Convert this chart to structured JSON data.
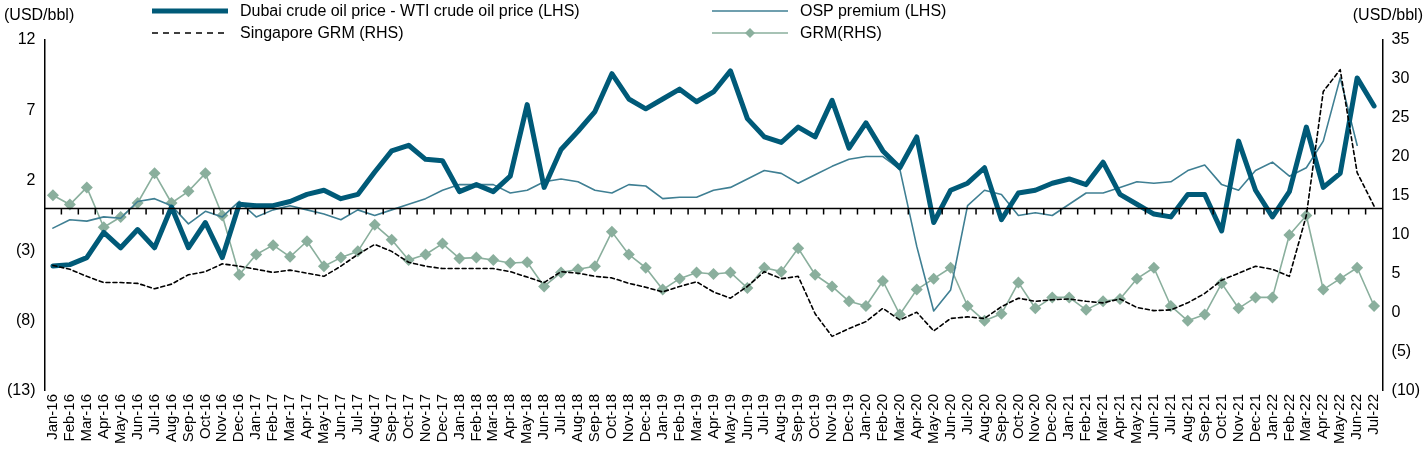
{
  "chart_data": {
    "type": "line",
    "ylabel": "(USD/bbl)",
    "y2label": "(USD/bbl)",
    "categories": [
      "Jan-16",
      "Feb-16",
      "Mar-16",
      "Apr-16",
      "May-16",
      "Jun-16",
      "Jul-16",
      "Aug-16",
      "Sep-16",
      "Oct-16",
      "Nov-16",
      "Dec-16",
      "Jan-17",
      "Feb-17",
      "Mar-17",
      "Apr-17",
      "May-17",
      "Jun-17",
      "Jul-17",
      "Aug-17",
      "Sep-17",
      "Oct-17",
      "Nov-17",
      "Dec-17",
      "Jan-18",
      "Feb-18",
      "Mar-18",
      "Apr-18",
      "May-18",
      "Jun-18",
      "Jul-18",
      "Aug-18",
      "Sep-18",
      "Oct-18",
      "Nov-18",
      "Dec-18",
      "Jan-19",
      "Feb-19",
      "Mar-19",
      "Apr-19",
      "May-19",
      "Jun-19",
      "Jul-19",
      "Aug-19",
      "Sep-19",
      "Oct-19",
      "Nov-19",
      "Dec-19",
      "Jan-20",
      "Feb-20",
      "Mar-20",
      "Apr-20",
      "May-20",
      "Jun-20",
      "Jul-20",
      "Aug-20",
      "Sep-20",
      "Oct-20",
      "Nov-20",
      "Dec-20",
      "Jan-21",
      "Feb-21",
      "Mar-21",
      "Apr-21",
      "May-21",
      "Jun-21",
      "Jul-21",
      "Aug-21",
      "Sep-21",
      "Oct-21",
      "Nov-21",
      "Dec-21",
      "Jan-22",
      "Feb-22",
      "Mar-22",
      "Apr-22",
      "May-22",
      "Jun-22",
      "Jul-22"
    ],
    "series": [
      {
        "name": "Dubai crude oil price - WTI crude oil price (LHS)",
        "color": "#005a78",
        "axis": "y",
        "line_style": "solid",
        "marker": "none",
        "values": [
          -4.1,
          -4.0,
          -3.5,
          -1.7,
          -2.8,
          -1.5,
          -2.8,
          0.1,
          -2.8,
          -1.0,
          -3.5,
          0.3,
          0.2,
          0.2,
          0.5,
          1.0,
          1.3,
          0.7,
          1.0,
          2.6,
          4.1,
          4.5,
          3.5,
          3.4,
          1.2,
          1.7,
          1.2,
          2.3,
          7.4,
          1.5,
          4.2,
          5.5,
          6.9,
          9.6,
          7.8,
          7.1,
          7.8,
          8.5,
          7.6,
          8.3,
          9.8,
          6.4,
          5.1,
          4.7,
          5.8,
          5.1,
          7.7,
          4.3,
          6.1,
          4.1,
          2.9,
          5.1,
          -1.0,
          1.3,
          1.8,
          2.9,
          -0.8,
          1.1,
          1.3,
          1.8,
          2.1,
          1.7,
          3.3,
          1.0,
          0.3,
          -0.4,
          -0.6,
          1.0,
          1.0,
          -1.6,
          4.8,
          1.3,
          -0.6,
          1.2,
          5.8,
          1.5,
          2.5,
          9.3,
          7.3
        ]
      },
      {
        "name": "OSP premium (LHS)",
        "color": "#3f7f93",
        "axis": "y",
        "line_style": "solid",
        "marker": "none",
        "values": [
          -1.4,
          -0.8,
          -0.9,
          -0.6,
          -0.7,
          0.5,
          0.7,
          0.2,
          -1.1,
          -0.2,
          -0.6,
          0.5,
          -0.6,
          -0.1,
          0.2,
          -0.1,
          -0.4,
          -0.8,
          -0.1,
          -0.5,
          -0.1,
          0.3,
          0.7,
          1.3,
          1.7,
          1.7,
          1.7,
          1.1,
          1.3,
          1.9,
          2.1,
          1.9,
          1.3,
          1.1,
          1.7,
          1.6,
          0.7,
          0.8,
          0.8,
          1.3,
          1.5,
          2.1,
          2.7,
          2.5,
          1.8,
          2.4,
          3.0,
          3.5,
          3.7,
          3.7,
          2.8,
          -2.7,
          -7.3,
          -5.8,
          0.2,
          1.3,
          1.0,
          -0.5,
          -0.3,
          -0.5,
          0.3,
          1.1,
          1.1,
          1.5,
          1.9,
          1.8,
          1.9,
          2.7,
          3.1,
          1.7,
          1.3,
          2.7,
          3.3,
          2.3,
          2.9,
          4.8,
          9.3,
          4.5,
          null
        ]
      },
      {
        "name": "Singapore GRM (RHS)",
        "color": "#000000",
        "axis": "y2",
        "line_style": "dashed",
        "marker": "none",
        "values": [
          6.1,
          5.6,
          4.7,
          3.9,
          3.9,
          3.8,
          3.1,
          3.7,
          4.9,
          5.3,
          6.3,
          6.0,
          5.6,
          5.2,
          5.5,
          5.1,
          4.7,
          6.0,
          7.5,
          8.8,
          7.9,
          6.5,
          6.0,
          5.7,
          5.7,
          5.7,
          5.7,
          5.3,
          4.6,
          3.9,
          5.3,
          5.1,
          4.7,
          4.5,
          3.8,
          3.3,
          2.7,
          3.4,
          4.0,
          2.7,
          1.9,
          3.4,
          5.3,
          4.4,
          4.7,
          -0.1,
          -3.0,
          -2.0,
          -1.1,
          0.6,
          -0.9,
          0.1,
          -2.3,
          -0.7,
          -0.5,
          -0.7,
          0.8,
          1.9,
          1.5,
          1.7,
          1.8,
          1.5,
          1.3,
          1.8,
          0.7,
          0.3,
          0.4,
          1.3,
          2.5,
          4.2,
          5.1,
          6.0,
          5.6,
          4.7,
          12.5,
          28.4,
          31.2,
          18.0,
          13.7
        ]
      },
      {
        "name": "GRM(RHS)",
        "color": "#8aaf9d",
        "axis": "y2",
        "line_style": "solid",
        "marker": "diamond",
        "values": [
          15.1,
          13.9,
          16.1,
          11.0,
          12.3,
          14.1,
          17.9,
          14.1,
          15.6,
          17.9,
          12.5,
          4.9,
          7.5,
          8.7,
          7.2,
          9.2,
          6.0,
          7.1,
          7.9,
          11.3,
          9.4,
          6.8,
          7.5,
          8.9,
          7.0,
          7.1,
          6.8,
          6.4,
          6.5,
          3.4,
          5.2,
          5.6,
          6.0,
          10.4,
          7.5,
          5.8,
          3.0,
          4.4,
          5.2,
          5.0,
          5.2,
          3.2,
          5.8,
          5.3,
          8.3,
          4.9,
          3.4,
          1.5,
          0.9,
          4.1,
          -0.2,
          3.0,
          4.4,
          5.8,
          0.9,
          -1.0,
          -0.1,
          3.9,
          0.6,
          2.0,
          2.0,
          0.4,
          1.5,
          1.8,
          4.4,
          5.8,
          0.9,
          -1.0,
          -0.2,
          3.8,
          0.6,
          2.0,
          2.0,
          10.0,
          12.5,
          3.0,
          4.4,
          5.8,
          0.9
        ]
      }
    ],
    "ylim": [
      -13,
      12
    ],
    "yticks": [
      {
        "value": -13,
        "label": "(13)"
      },
      {
        "value": -8,
        "label": "(8)"
      },
      {
        "value": -3,
        "label": "(3)"
      },
      2,
      7,
      12
    ],
    "y2lim": [
      -10,
      35
    ],
    "y2ticks": [
      {
        "value": -10,
        "label": "(10)"
      },
      {
        "value": -5,
        "label": "(5)"
      },
      0,
      5,
      10,
      15,
      20,
      25,
      30,
      35
    ],
    "ref_lines": [
      {
        "axis": "y",
        "value": 0,
        "color": "#000000"
      }
    ],
    "grid": false,
    "legend": "top"
  }
}
